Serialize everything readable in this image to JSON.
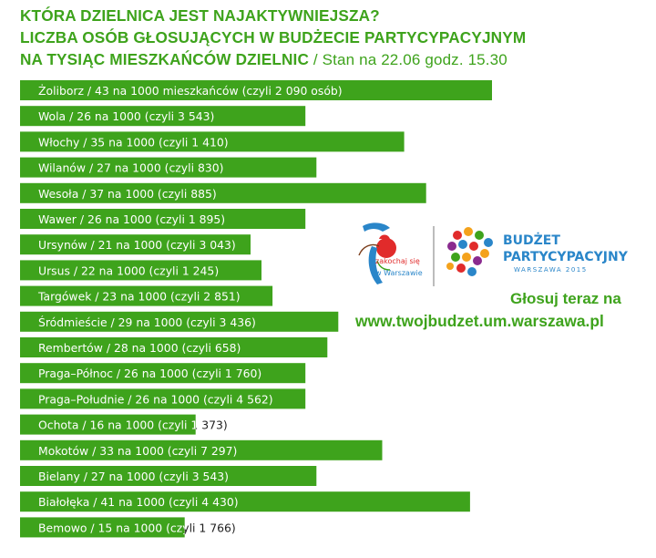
{
  "header": {
    "line1": "KTÓRA DZIELNICA JEST NAJAKTYWNIEJSZA?",
    "line2": "LICZBA OSÓB GŁOSUJĄCYCH W BUDŻECIE PARTYCYPACYJNYM",
    "line3": "NA TYSIĄC MIESZKAŃCÓW DZIELNIC",
    "line3_sub": " / Stan na 22.06 godz. 15.30"
  },
  "logos": {
    "left_logo_icon": "zakochaj-sie-w-warszawie-heart-logo",
    "left_logo_text1": "zakochaj się",
    "left_logo_text2": "w Warszawie",
    "right_logo_icon": "gears-map-icon",
    "right_logo_title1": "BUDŻET",
    "right_logo_title2": "PARTYCYPACYJNY",
    "right_logo_sub": "WARSZAWA 2015"
  },
  "cta": {
    "line1": "Głosuj teraz na",
    "line2": "www.twojbudzet.um.warszawa.pl"
  },
  "colors": {
    "bar": "#3ea31c",
    "title": "#3ea31c"
  },
  "chart_data": {
    "type": "bar",
    "orientation": "horizontal",
    "categories": [
      "Żoliborz",
      "Wola",
      "Włochy",
      "Wilanów",
      "Wesoła",
      "Wawer",
      "Ursynów",
      "Ursus",
      "Targówek",
      "Śródmieście",
      "Rembertów",
      "Praga–Północ",
      "Praga–Południe",
      "Ochota",
      "Mokotów",
      "Bielany",
      "Białołęka",
      "Bemowo"
    ],
    "values": [
      43,
      26,
      35,
      27,
      37,
      26,
      21,
      22,
      23,
      29,
      28,
      26,
      26,
      16,
      33,
      27,
      41,
      15
    ],
    "labels": [
      "Żoliborz / 43 na 1000 mieszkańców (czyli 2 090 osób)",
      "Wola / 26 na 1000 (czyli 3 543)",
      "Włochy / 35 na 1000 (czyli 1 410)",
      "Wilanów / 27 na 1000 (czyli 830)",
      "Wesoła / 37 na 1000 (czyli 885)",
      "Wawer / 26 na 1000 (czyli 1 895)",
      "Ursynów / 21 na 1000 (czyli 3 043)",
      "Ursus / 22 na 1000 (czyli 1 245)",
      "Targówek / 23 na 1000 (czyli 2 851)",
      "Śródmieście / 29 na 1000 (czyli 3 436)",
      "Rembertów / 28 na 1000 (czyli 658)",
      "Praga–Północ / 26 na 1000 (czyli 1 760)",
      "Praga–Południe / 26 na 1000 (czyli 4 562)",
      "Ochota / 16 na 1000 (czyli 1 373)",
      "Mokotów / 33 na 1000 (czyli 7 297)",
      "Bielany / 27 na 1000 (czyli 3 543)",
      "Białołęka / 41 na 1000 (czyli 4 430)",
      "Bemowo / 15 na 1000 (czyli  1 766)"
    ],
    "title": "",
    "xlabel": "",
    "ylabel": "",
    "xlim": [
      0,
      43
    ],
    "grid": false,
    "legend": "none"
  }
}
